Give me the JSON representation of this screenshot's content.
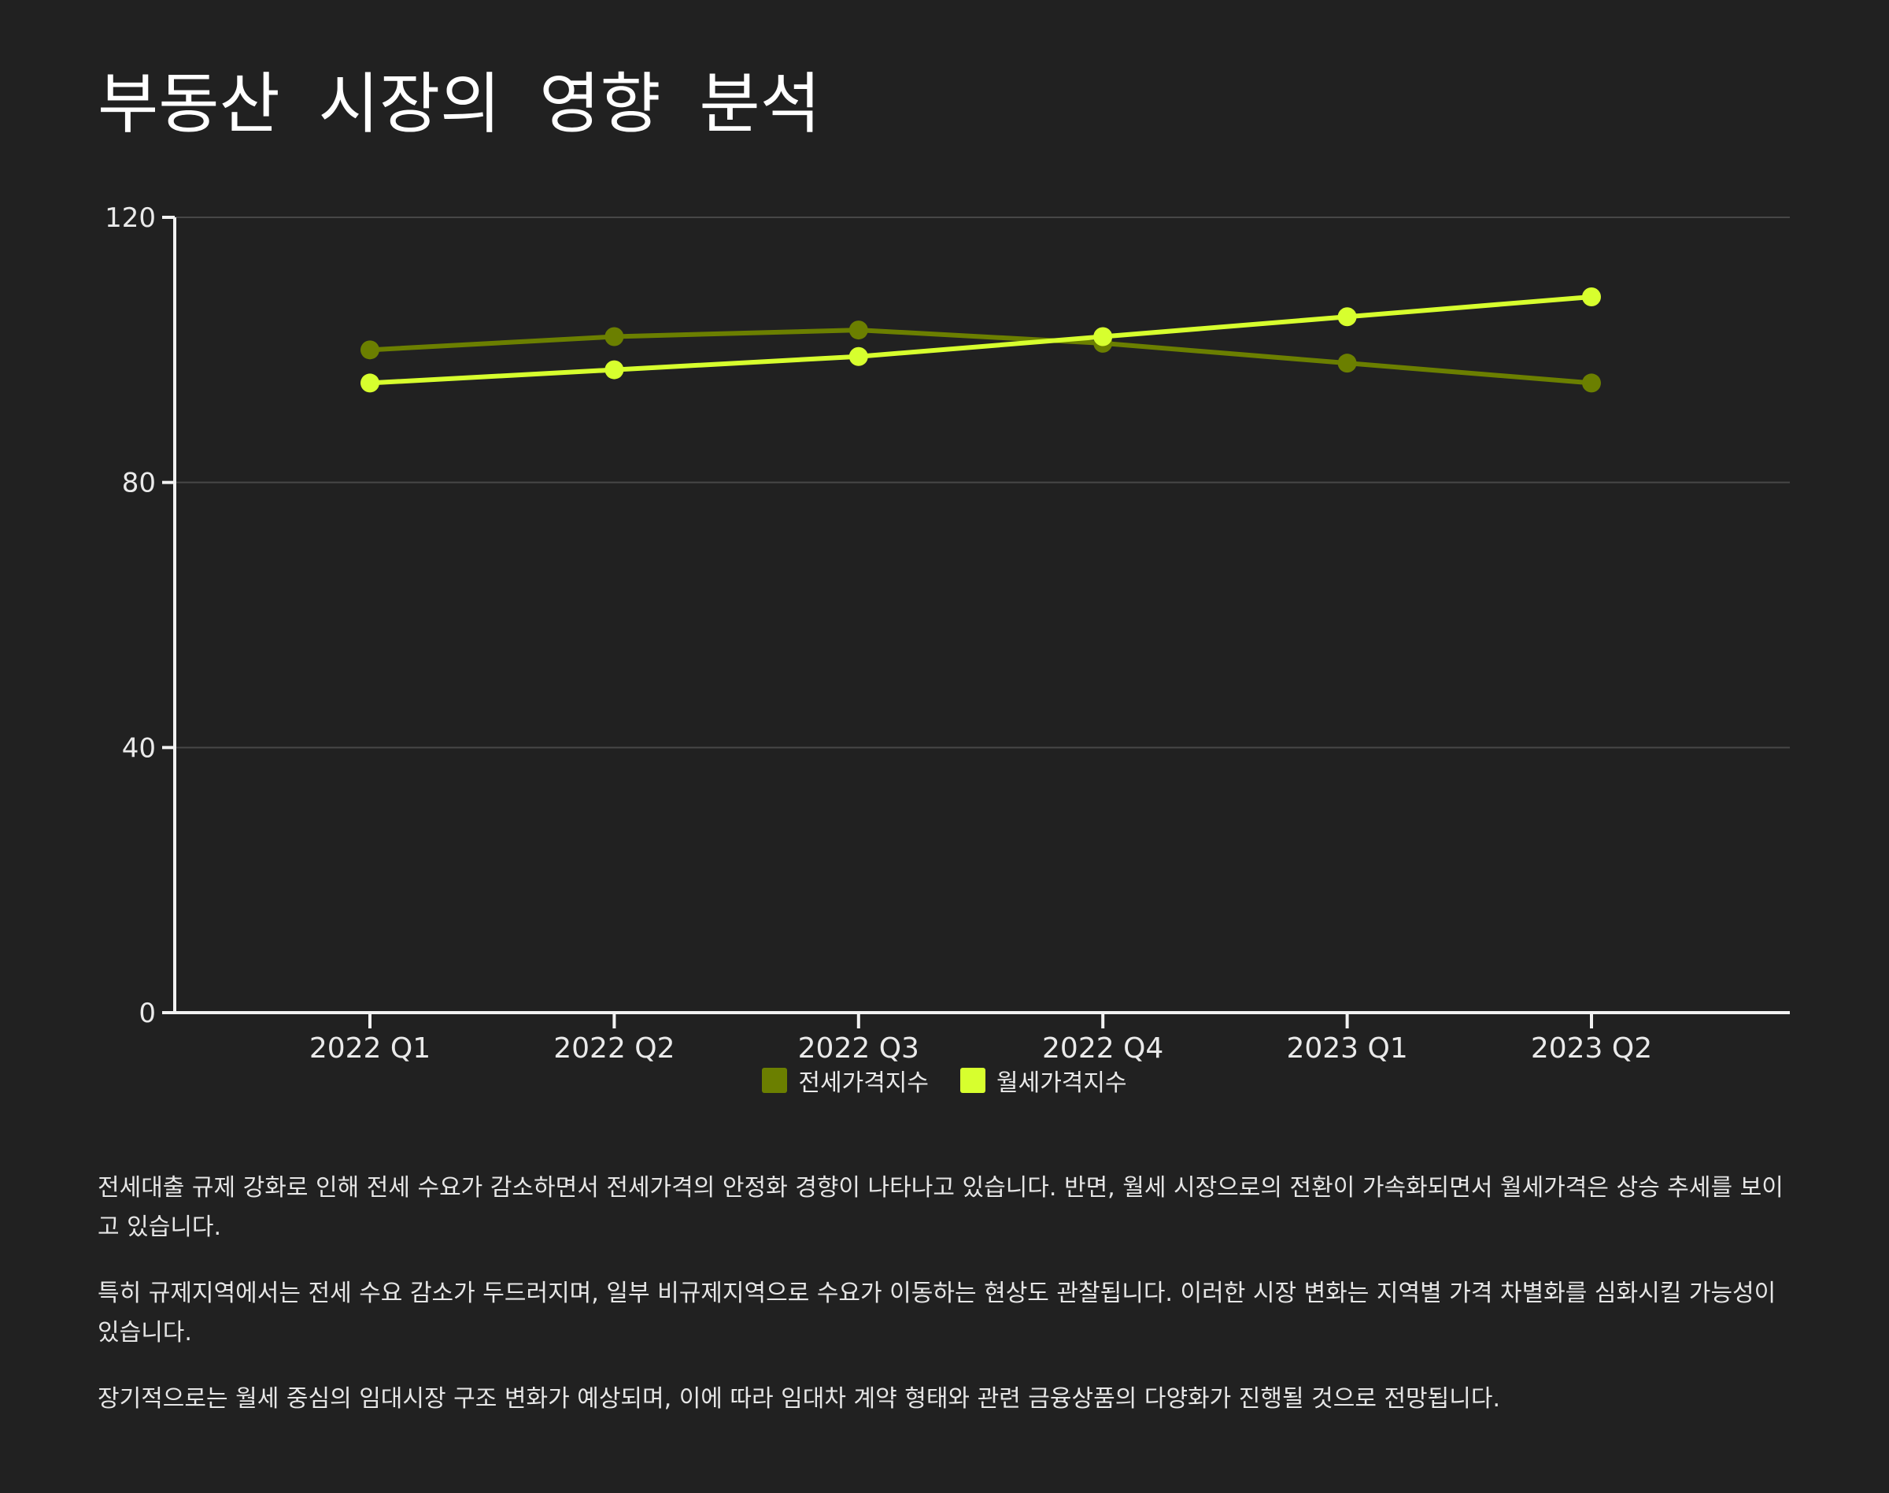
{
  "page": {
    "title": "부동산 시장의 영향 분석"
  },
  "chart_data": {
    "type": "line",
    "title": "",
    "xlabel": "",
    "ylabel": "",
    "categories": [
      "2022 Q1",
      "2022 Q2",
      "2022 Q3",
      "2022 Q4",
      "2023 Q1",
      "2023 Q2"
    ],
    "series": [
      {
        "name": "전세가격지수",
        "values": [
          100,
          102,
          103,
          101,
          98,
          95
        ],
        "color": "#6b7f00"
      },
      {
        "name": "월세가격지수",
        "values": [
          95,
          97,
          99,
          102,
          105,
          108
        ],
        "color": "#d7ff2e"
      }
    ],
    "ylim": [
      0,
      120
    ],
    "yticks": [
      0,
      40,
      80,
      120
    ],
    "grid": true,
    "legend": "bottom-center"
  },
  "colors": {
    "background": "#212121",
    "gridline": "#474747",
    "axis": "#f2f2f2",
    "text": "#eaeaea"
  },
  "description": {
    "paragraphs": [
      "전세대출 규제 강화로 인해 전세 수요가 감소하면서 전세가격의 안정화 경향이 나타나고 있습니다. 반면, 월세 시장으로의 전환이 가속화되면서 월세가격은 상승 추세를 보이고 있습니다.",
      "특히 규제지역에서는 전세 수요 감소가 두드러지며, 일부 비규제지역으로 수요가 이동하는 현상도 관찰됩니다. 이러한 시장 변화는 지역별 가격 차별화를 심화시킬 가능성이 있습니다.",
      "장기적으로는 월세 중심의 임대시장 구조 변화가 예상되며, 이에 따라 임대차 계약 형태와 관련 금융상품의 다양화가 진행될 것으로 전망됩니다."
    ]
  }
}
